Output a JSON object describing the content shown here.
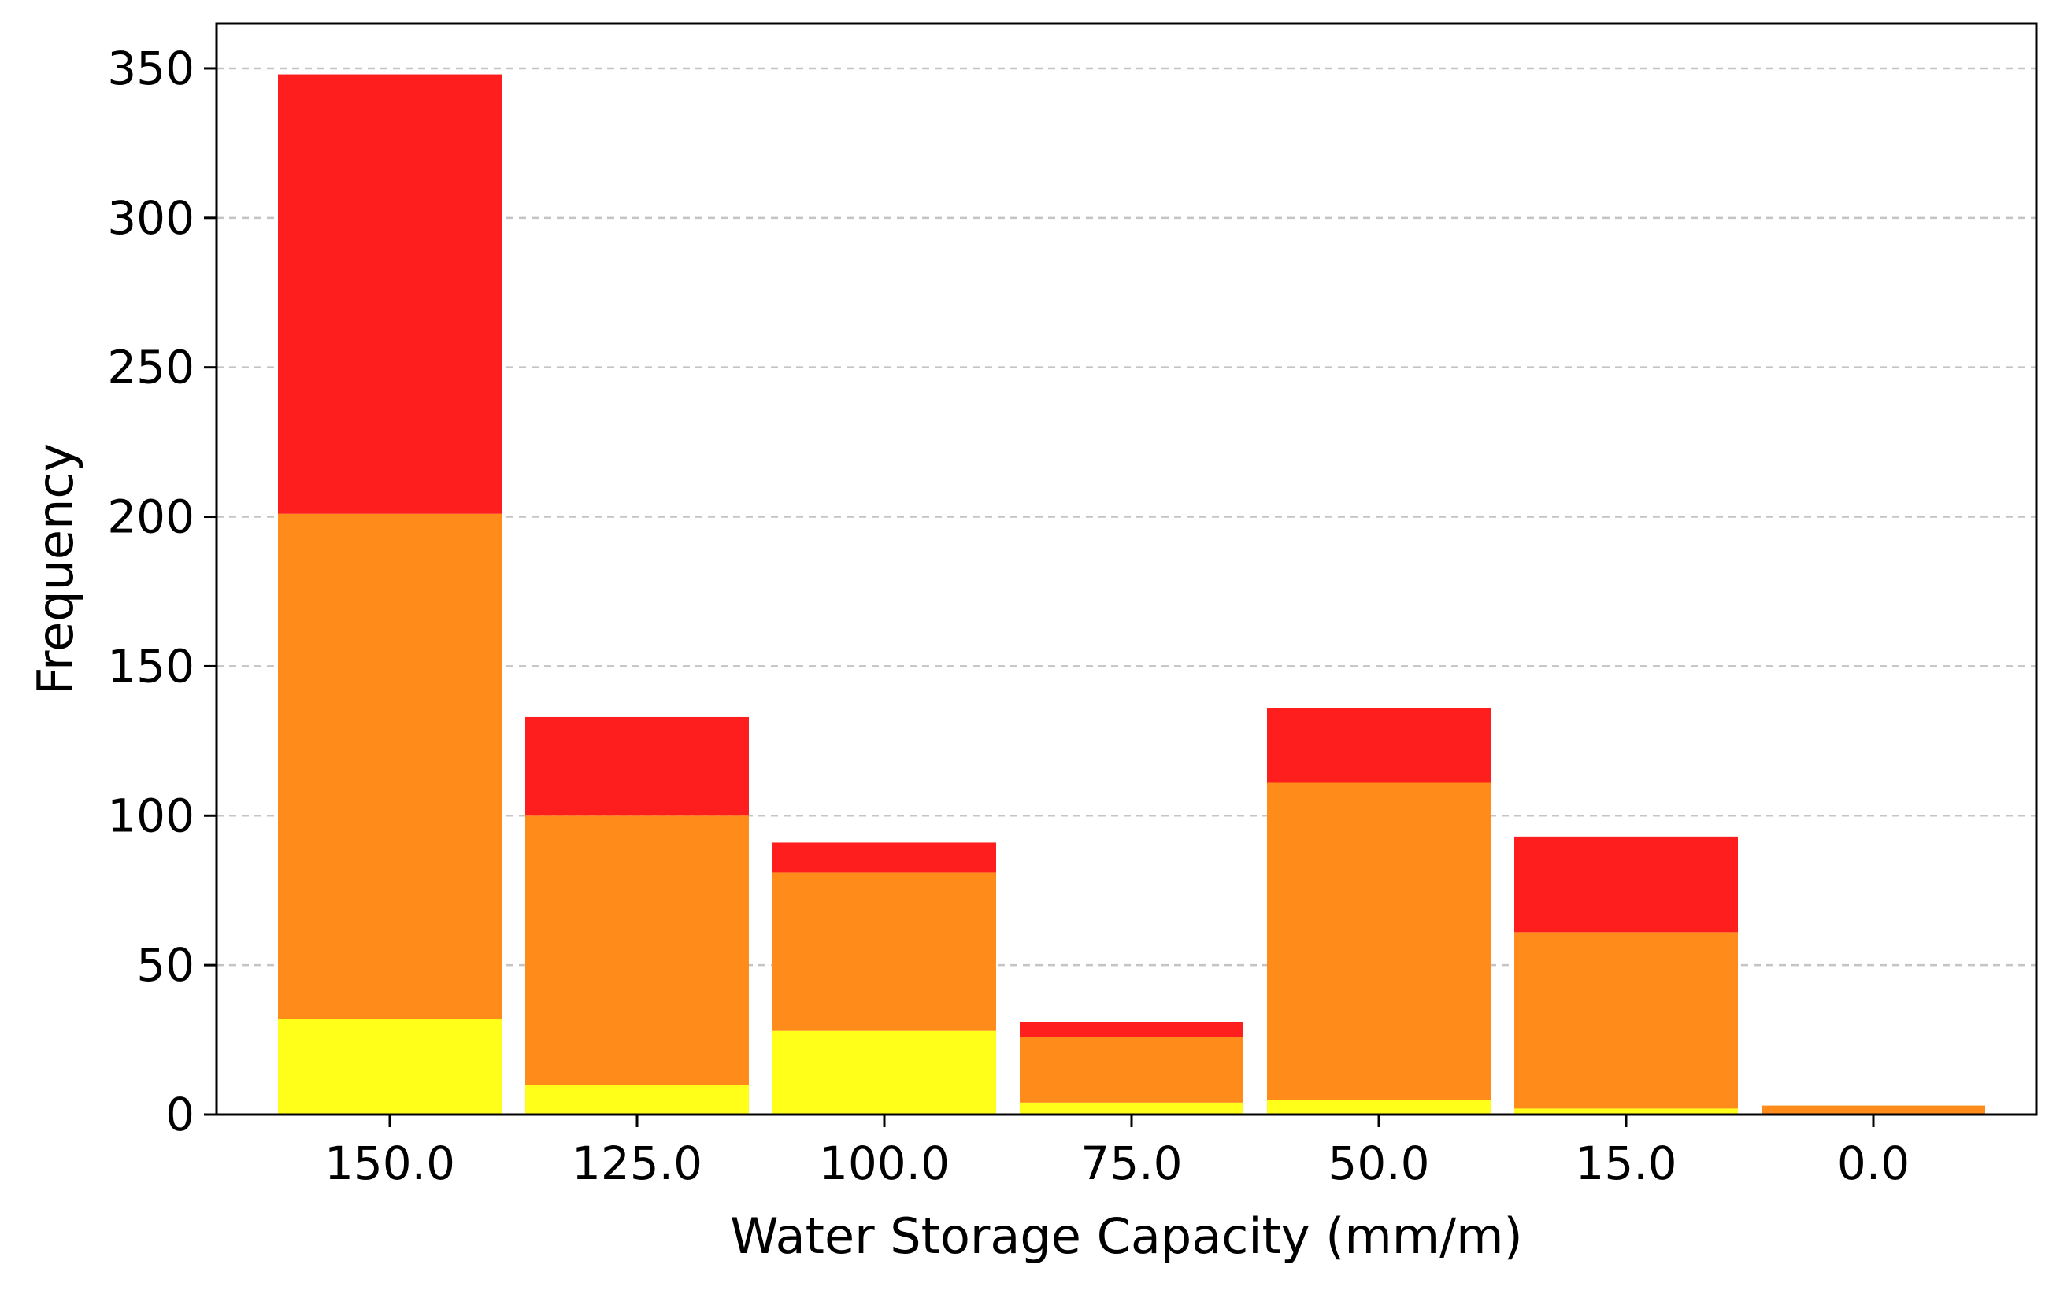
{
  "chart_data": {
    "type": "bar",
    "stacked": true,
    "categories": [
      "150.0",
      "125.0",
      "100.0",
      "75.0",
      "50.0",
      "15.0",
      "0.0"
    ],
    "series": [
      {
        "color": "#ffff1a",
        "values": [
          32,
          10,
          28,
          4,
          5,
          2,
          0
        ]
      },
      {
        "color": "#ff8c1a",
        "values": [
          169,
          90,
          53,
          22,
          106,
          59,
          3
        ]
      },
      {
        "color": "#ff1e1e",
        "values": [
          147,
          33,
          10,
          5,
          25,
          32,
          0
        ]
      }
    ],
    "title": "",
    "xlabel": "Water Storage Capacity (mm/m)",
    "ylabel": "Frequency",
    "ylim": [
      0,
      365
    ],
    "yticks": [
      "0",
      "50",
      "100",
      "150",
      "200",
      "250",
      "300",
      "350"
    ],
    "grid": "horizontal dashed",
    "legend": "none"
  }
}
